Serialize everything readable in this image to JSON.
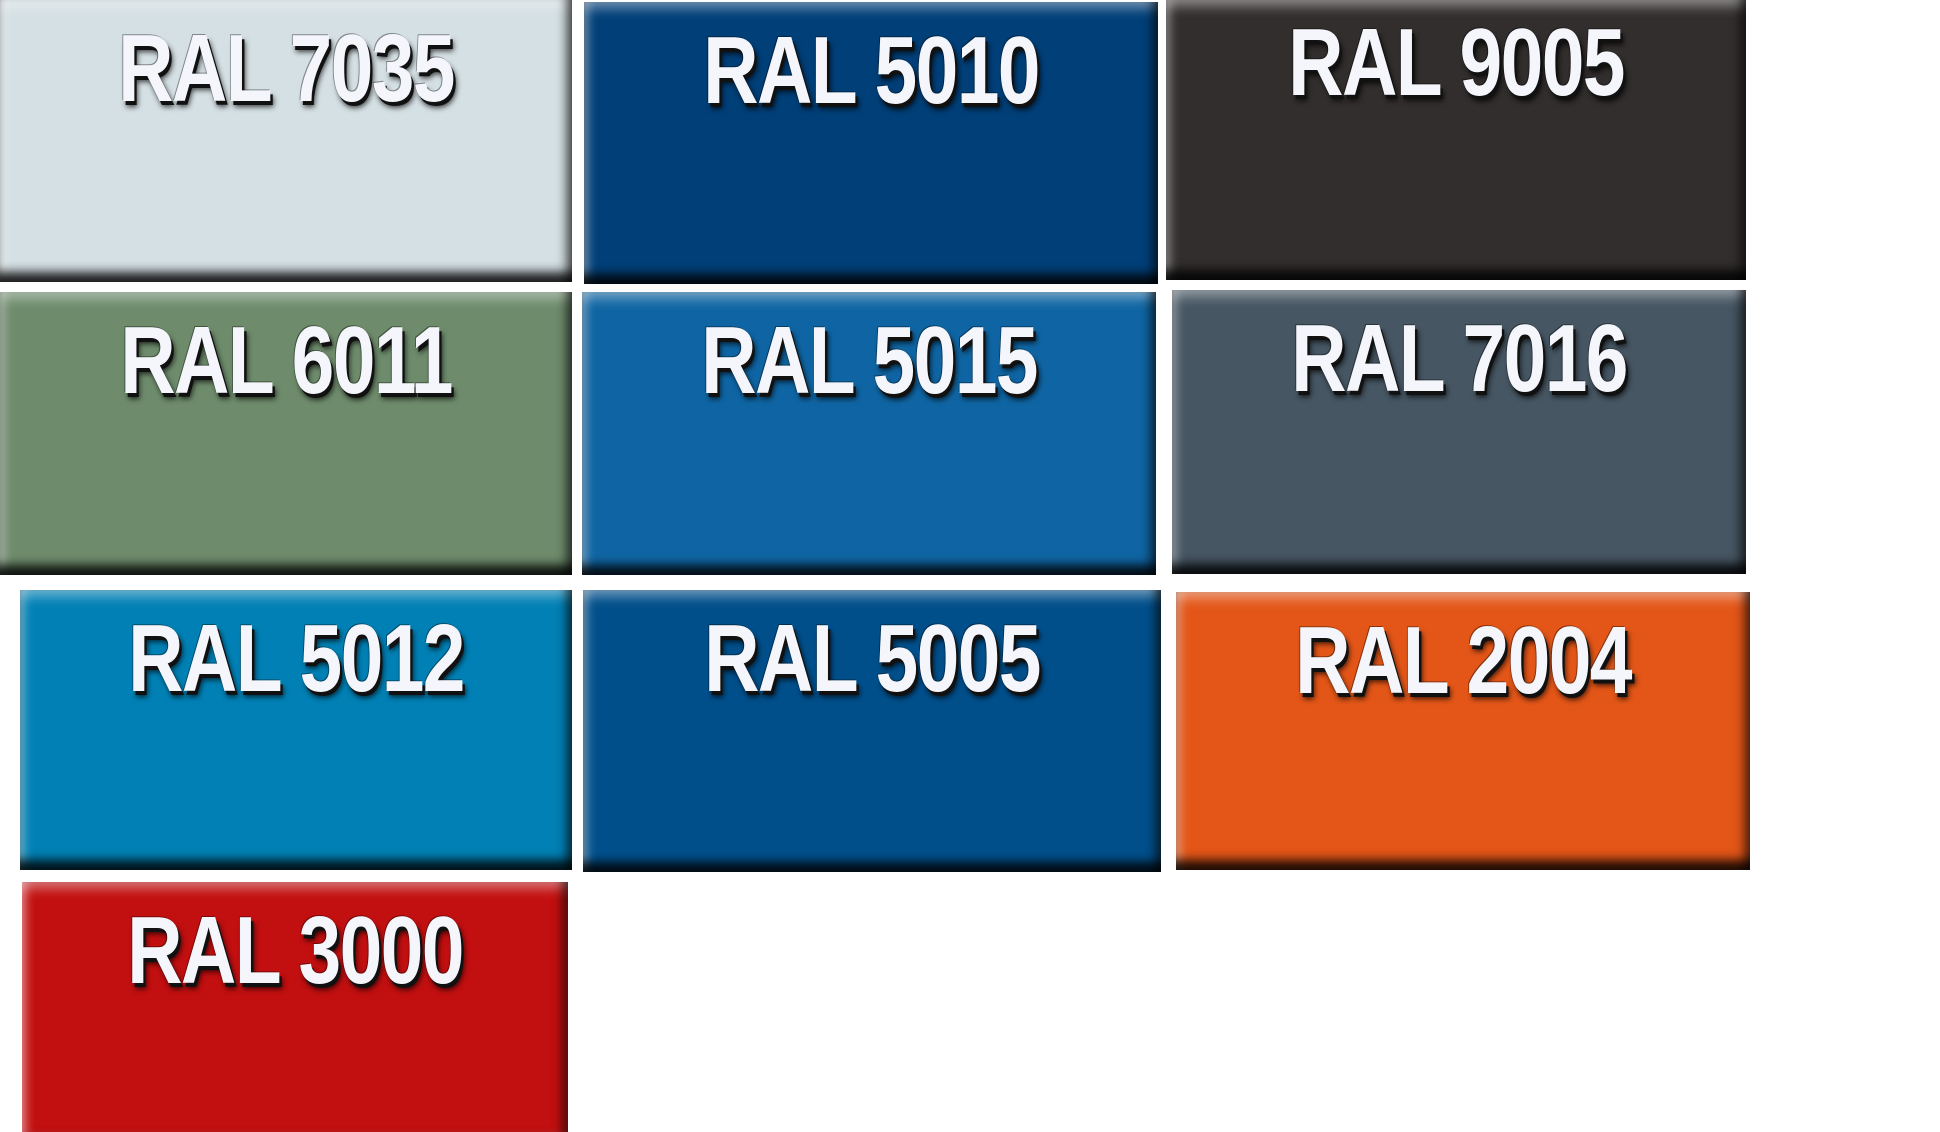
{
  "tiles": [
    {
      "label": "RAL 7035",
      "color": "#d5e0e4"
    },
    {
      "label": "RAL 5010",
      "color": "#003f78"
    },
    {
      "label": "RAL 9005",
      "color": "#322e2d"
    },
    {
      "label": "RAL 6011",
      "color": "#6e8c6c"
    },
    {
      "label": "RAL 5015",
      "color": "#0f65a3"
    },
    {
      "label": "RAL 7016",
      "color": "#465663"
    },
    {
      "label": "RAL 5012",
      "color": "#0080b5"
    },
    {
      "label": "RAL 5005",
      "color": "#004f8b"
    },
    {
      "label": "RAL 2004",
      "color": "#e35618"
    },
    {
      "label": "RAL 3000",
      "color": "#c20f10"
    }
  ]
}
